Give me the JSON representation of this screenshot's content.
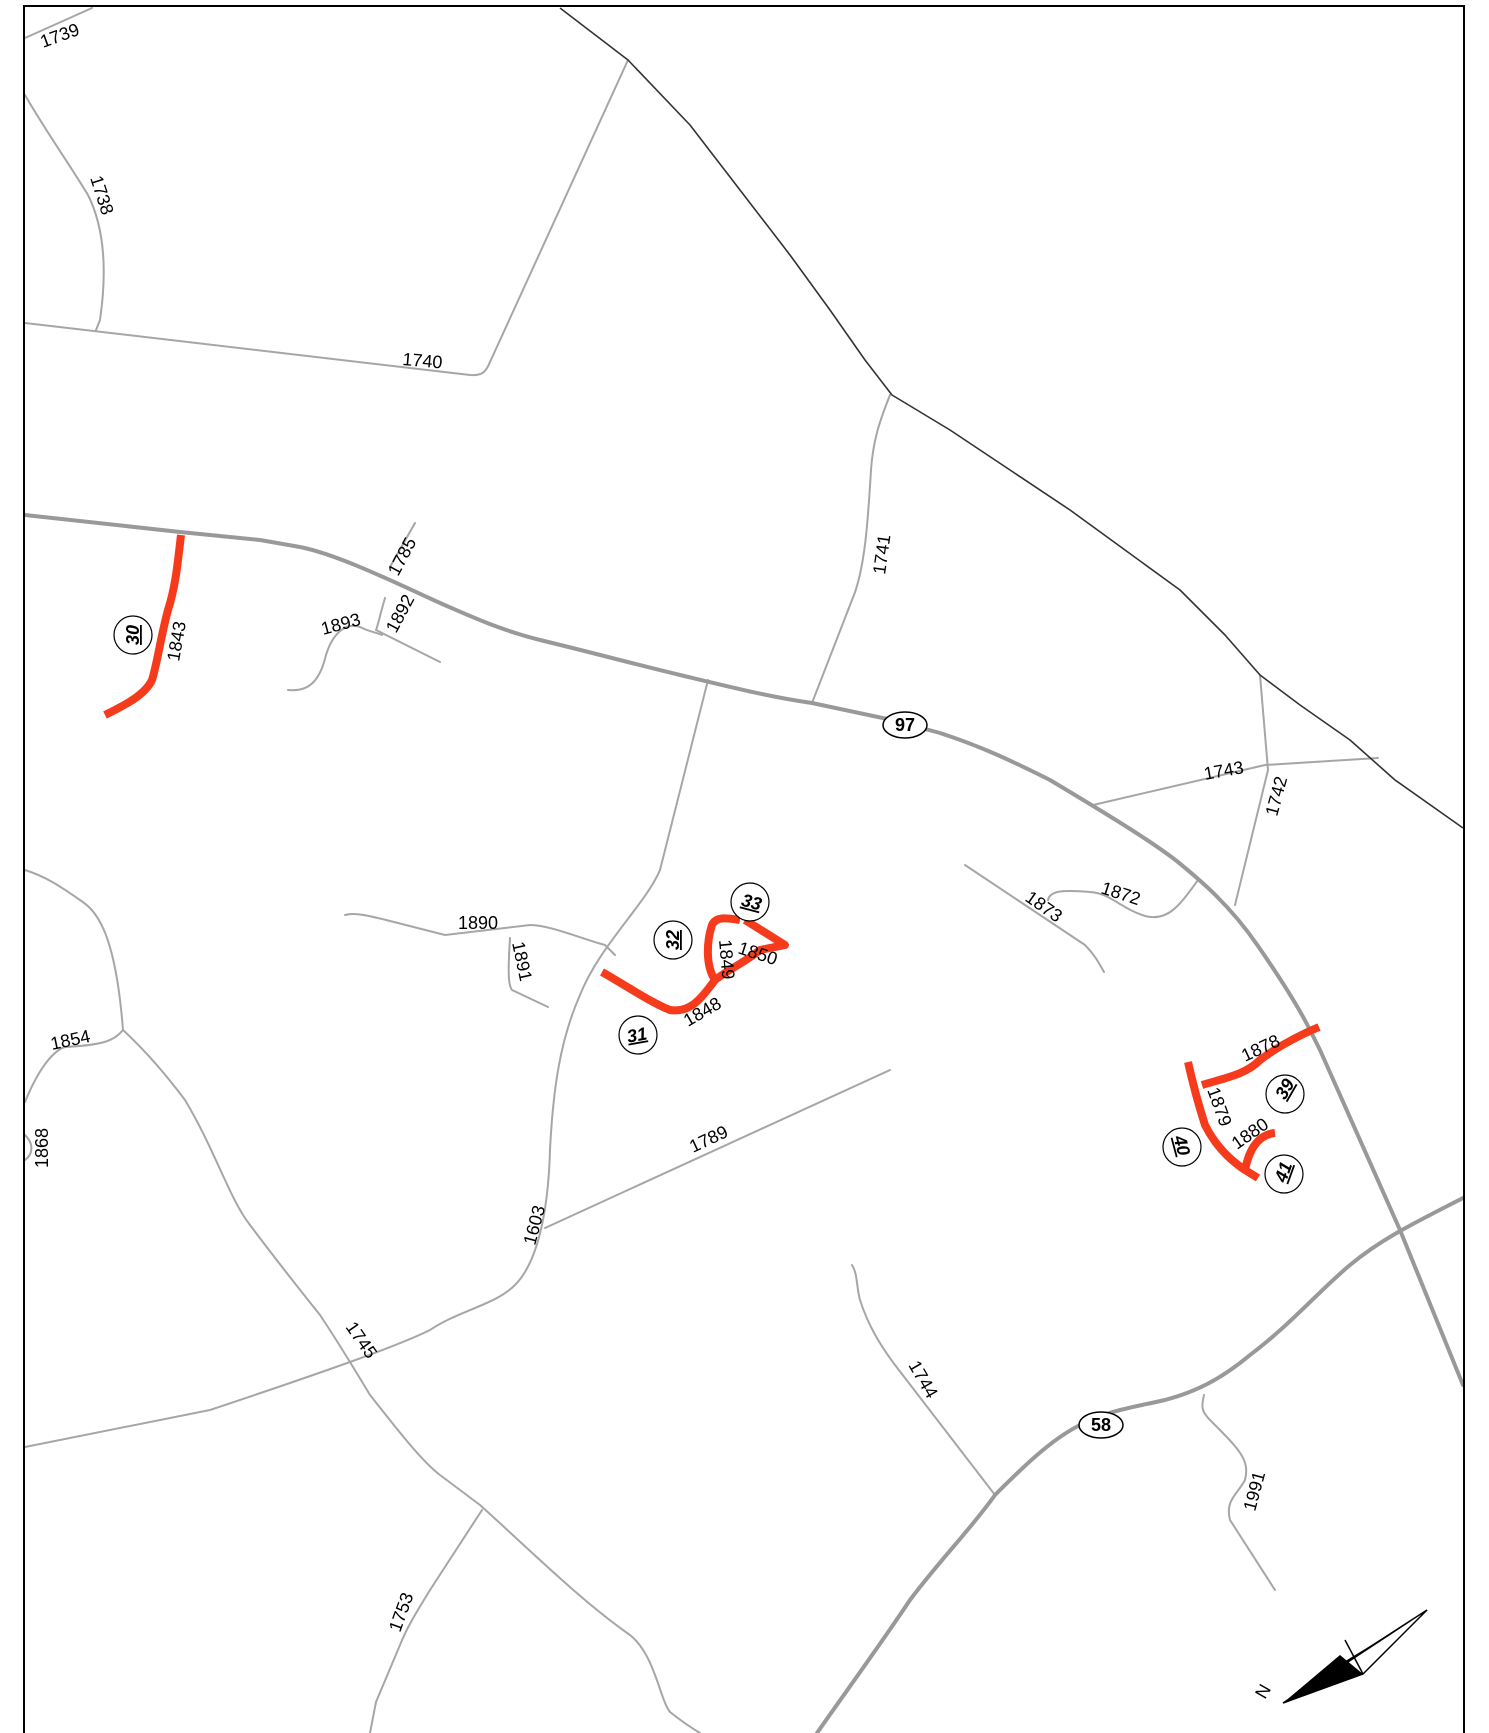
{
  "colors": {
    "background": "#ffffff",
    "secondary_road": "#a6a6a6",
    "primary_route": "#999999",
    "county_boundary": "#333333",
    "project_highlight": "#f63b1c"
  },
  "highway_shields": [
    "97",
    "58"
  ],
  "road_labels": [
    "1739",
    "1738",
    "1740",
    "1741",
    "1785",
    "1892",
    "1893",
    "1843",
    "1743",
    "1742",
    "1890",
    "1891",
    "1873",
    "1872",
    "1849",
    "1850",
    "1848",
    "1854",
    "1868",
    "1878",
    "1879",
    "1880",
    "1789",
    "1603",
    "1745",
    "1744",
    "1991",
    "1753"
  ],
  "project_markers": [
    "30",
    "31",
    "32",
    "33",
    "39",
    "40",
    "41"
  ],
  "north_arrow": {
    "label": "N",
    "icon": "north-arrow-icon"
  }
}
